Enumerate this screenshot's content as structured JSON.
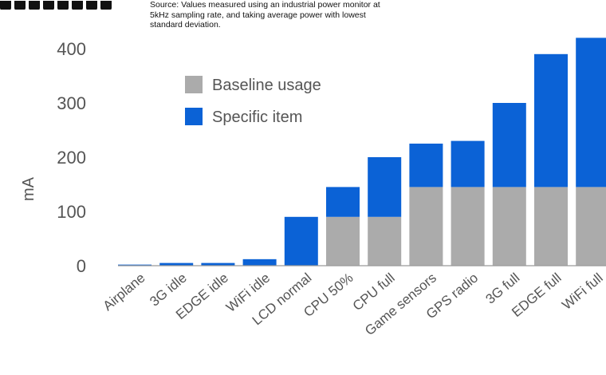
{
  "source_note": "Source: Values measured using an industrial power monitor at 5kHz sampling rate, and taking average power with lowest standard deviation.",
  "colors": {
    "baseline": "#ababab",
    "specific": "#0b62d6",
    "axis_text": "#555555",
    "background": "#ffffff"
  },
  "chart_data": {
    "type": "bar",
    "stacked": true,
    "title": "",
    "xlabel": "",
    "ylabel": "mA",
    "ylim": [
      0,
      420
    ],
    "yticks": [
      0,
      100,
      200,
      300,
      400
    ],
    "grid": false,
    "legend_position": "top-left",
    "categories": [
      "Airplane",
      "3G idle",
      "EDGE idle",
      "WiFi idle",
      "LCD normal",
      "CPU 50%",
      "CPU full",
      "Game sensors",
      "GPS radio",
      "3G full",
      "EDGE full",
      "WiFi full"
    ],
    "series": [
      {
        "name": "Baseline usage",
        "color": "#ababab",
        "values": [
          0,
          0,
          0,
          0,
          0,
          90,
          90,
          145,
          145,
          145,
          145,
          145
        ]
      },
      {
        "name": "Specific item",
        "color": "#0b62d6",
        "values": [
          2,
          5,
          5,
          12,
          90,
          55,
          110,
          80,
          85,
          155,
          245,
          275
        ]
      }
    ]
  }
}
